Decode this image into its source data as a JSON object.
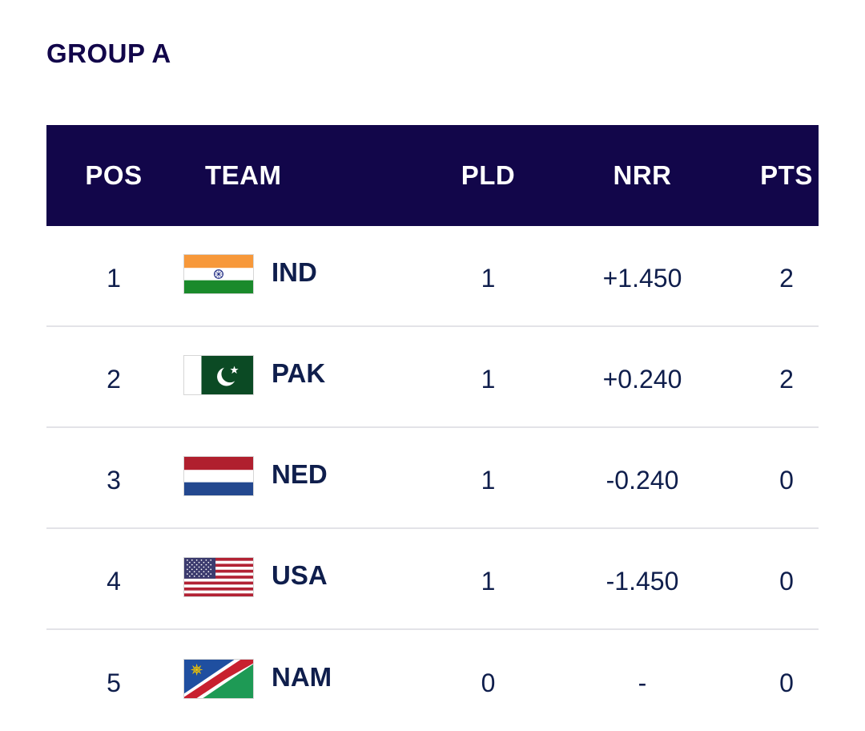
{
  "group_title": "GROUP A",
  "headers": {
    "pos": "POS",
    "team": "TEAM",
    "pld": "PLD",
    "nrr": "NRR",
    "pts": "PTS"
  },
  "rows": [
    {
      "pos": "1",
      "team": "IND",
      "flag_icon": "india-flag-icon",
      "pld": "1",
      "nrr": "+1.450",
      "pts": "2"
    },
    {
      "pos": "2",
      "team": "PAK",
      "flag_icon": "pakistan-flag-icon",
      "pld": "1",
      "nrr": "+0.240",
      "pts": "2"
    },
    {
      "pos": "3",
      "team": "NED",
      "flag_icon": "netherlands-flag-icon",
      "pld": "1",
      "nrr": "-0.240",
      "pts": "0"
    },
    {
      "pos": "4",
      "team": "USA",
      "flag_icon": "usa-flag-icon",
      "pld": "1",
      "nrr": "-1.450",
      "pts": "0"
    },
    {
      "pos": "5",
      "team": "NAM",
      "flag_icon": "namibia-flag-icon",
      "pld": "0",
      "nrr": "-",
      "pts": "0"
    }
  ],
  "colors": {
    "header_background": "#12064a",
    "text": "#0f1e4c",
    "row_divider": "#e3e3e8"
  }
}
